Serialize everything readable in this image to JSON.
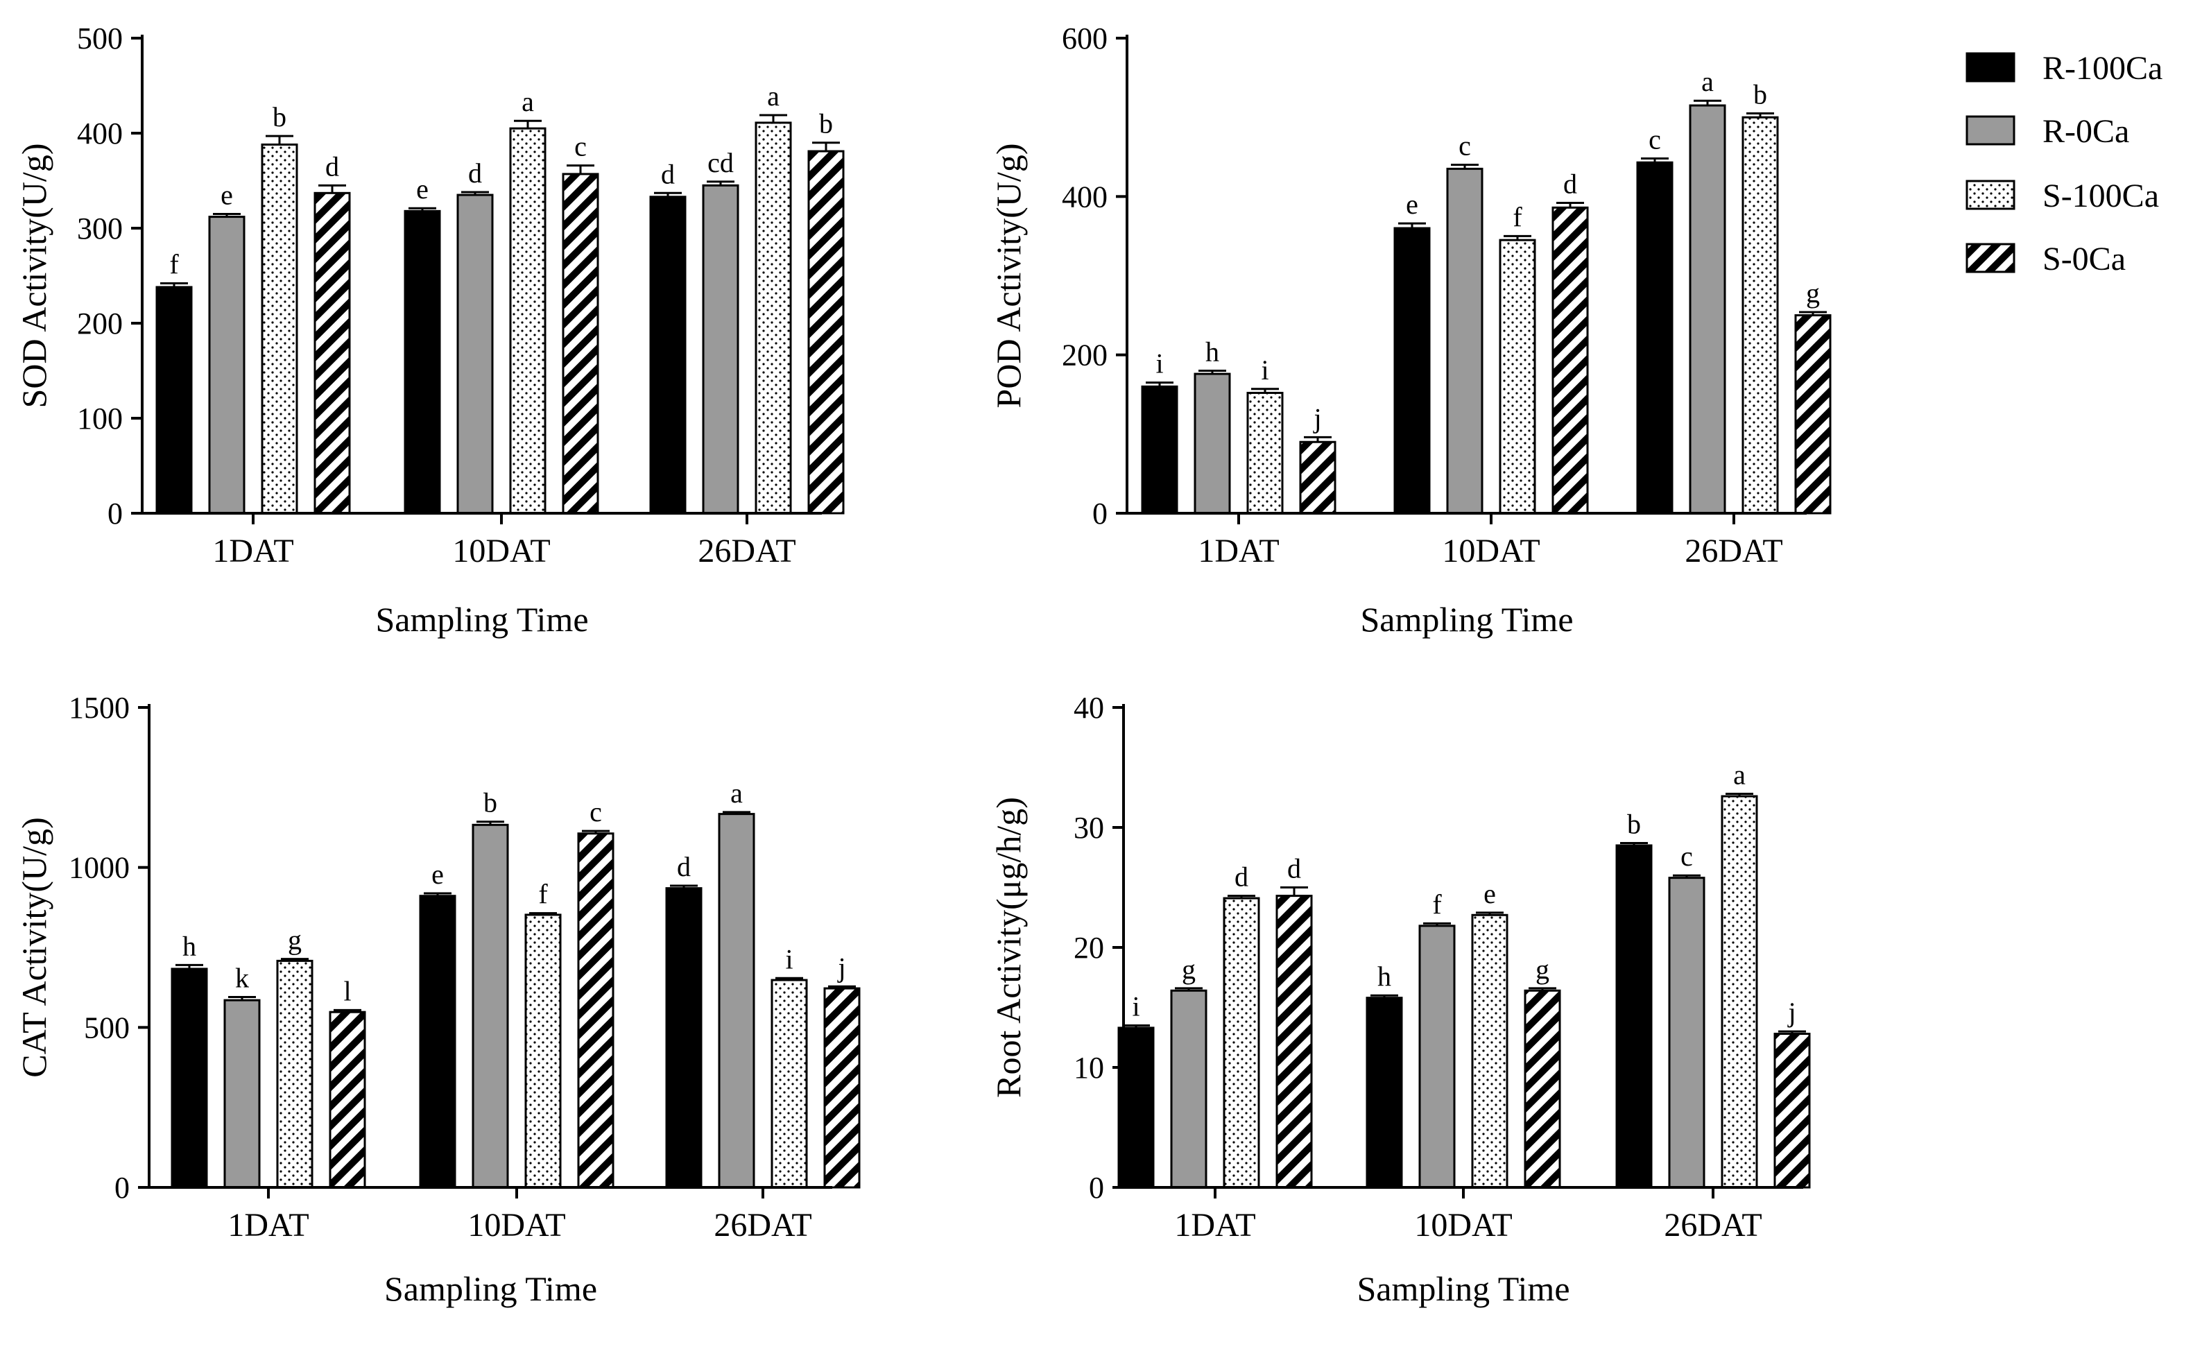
{
  "chart_data": [
    {
      "type": "bar",
      "categories": [
        "1DAT",
        "10DAT",
        "26DAT"
      ],
      "series": [
        {
          "name": "R-100Ca",
          "values": [
            238,
            318,
            333
          ],
          "errors": [
            4,
            3,
            4
          ],
          "letters": [
            "f",
            "e",
            "d"
          ]
        },
        {
          "name": "R-0Ca",
          "values": [
            312,
            335,
            345
          ],
          "errors": [
            3,
            3,
            4
          ],
          "letters": [
            "e",
            "d",
            "cd"
          ]
        },
        {
          "name": "S-100Ca",
          "values": [
            388,
            405,
            411
          ],
          "errors": [
            9,
            8,
            8
          ],
          "letters": [
            "b",
            "a",
            "a"
          ]
        },
        {
          "name": "S-0Ca",
          "values": [
            337,
            357,
            381
          ],
          "errors": [
            8,
            9,
            9
          ],
          "letters": [
            "d",
            "c",
            "b"
          ]
        }
      ],
      "ylabel": "SOD Activity(U/g)",
      "xlabel": "Sampling Time",
      "ylim": [
        0,
        500
      ],
      "yticks": [
        0,
        100,
        200,
        300,
        400,
        500
      ]
    },
    {
      "type": "bar",
      "categories": [
        "1DAT",
        "10DAT",
        "26DAT"
      ],
      "series": [
        {
          "name": "R-100Ca",
          "values": [
            160,
            360,
            443
          ],
          "errors": [
            5,
            6,
            5
          ],
          "letters": [
            "i",
            "e",
            "c"
          ]
        },
        {
          "name": "R-0Ca",
          "values": [
            176,
            435,
            515
          ],
          "errors": [
            4,
            5,
            6
          ],
          "letters": [
            "h",
            "c",
            "a"
          ]
        },
        {
          "name": "S-100Ca",
          "values": [
            152,
            345,
            500
          ],
          "errors": [
            5,
            5,
            5
          ],
          "letters": [
            "i",
            "f",
            "b"
          ]
        },
        {
          "name": "S-0Ca",
          "values": [
            90,
            386,
            250
          ],
          "errors": [
            6,
            6,
            4
          ],
          "letters": [
            "j",
            "d",
            "g"
          ]
        }
      ],
      "ylabel": "POD Activity(U/g)",
      "xlabel": "Sampling Time",
      "ylim": [
        0,
        600
      ],
      "yticks": [
        0,
        200,
        400,
        600
      ]
    },
    {
      "type": "bar",
      "categories": [
        "1DAT",
        "10DAT",
        "26DAT"
      ],
      "series": [
        {
          "name": "R-100Ca",
          "values": [
            683,
            911,
            935
          ],
          "errors": [
            12,
            8,
            8
          ],
          "letters": [
            "h",
            "e",
            "d"
          ]
        },
        {
          "name": "R-0Ca",
          "values": [
            585,
            1133,
            1167
          ],
          "errors": [
            10,
            10,
            6
          ],
          "letters": [
            "k",
            "b",
            "a"
          ]
        },
        {
          "name": "S-100Ca",
          "values": [
            708,
            852,
            648
          ],
          "errors": [
            6,
            5,
            6
          ],
          "letters": [
            "g",
            "f",
            "i"
          ]
        },
        {
          "name": "S-0Ca",
          "values": [
            548,
            1106,
            622
          ],
          "errors": [
            6,
            8,
            6
          ],
          "letters": [
            "l",
            "c",
            "j"
          ]
        }
      ],
      "ylabel": "CAT Activity(U/g)",
      "xlabel": "Sampling Time",
      "ylim": [
        0,
        1500
      ],
      "yticks": [
        0,
        500,
        1000,
        1500
      ]
    },
    {
      "type": "bar",
      "categories": [
        "1DAT",
        "10DAT",
        "26DAT"
      ],
      "series": [
        {
          "name": "R-100Ca",
          "values": [
            13.3,
            15.8,
            28.5
          ],
          "errors": [
            0.2,
            0.2,
            0.2
          ],
          "letters": [
            "i",
            "h",
            "b"
          ]
        },
        {
          "name": "R-0Ca",
          "values": [
            16.4,
            21.8,
            25.8
          ],
          "errors": [
            0.2,
            0.2,
            0.2
          ],
          "letters": [
            "g",
            "f",
            "c"
          ]
        },
        {
          "name": "S-100Ca",
          "values": [
            24.1,
            22.7,
            32.6
          ],
          "errors": [
            0.2,
            0.2,
            0.2
          ],
          "letters": [
            "d",
            "e",
            "a"
          ]
        },
        {
          "name": "S-0Ca",
          "values": [
            24.3,
            16.4,
            12.8
          ],
          "errors": [
            0.7,
            0.2,
            0.2
          ],
          "letters": [
            "d",
            "g",
            "j"
          ]
        }
      ],
      "ylabel": "Root Activity(μg/h/g)",
      "xlabel": "Sampling Time",
      "ylim": [
        0,
        40
      ],
      "yticks": [
        0,
        10,
        20,
        30,
        40
      ]
    }
  ],
  "legend": [
    {
      "name": "R-100Ca",
      "pattern": "solid-black"
    },
    {
      "name": "R-0Ca",
      "pattern": "solid-gray"
    },
    {
      "name": "S-100Ca",
      "pattern": "dots"
    },
    {
      "name": "S-0Ca",
      "pattern": "diagonal-stripes"
    }
  ],
  "colors": {
    "r100": "#000000",
    "r0": "#9a9a9a",
    "outline": "#000000"
  }
}
